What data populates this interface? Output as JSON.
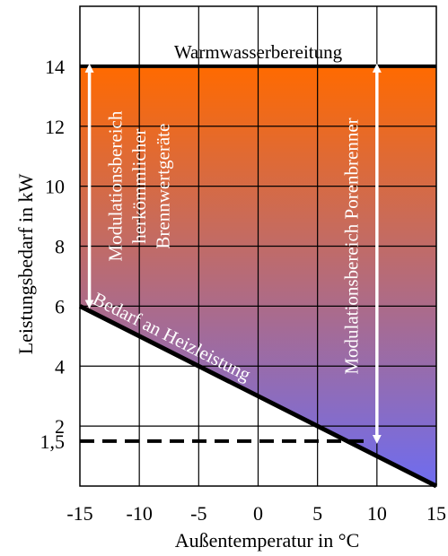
{
  "chart_data": {
    "type": "area",
    "title": "",
    "xlabel": "Außentemperatur in °C",
    "ylabel": "Leistungsbedarf  in kW",
    "xlim": [
      -15,
      15
    ],
    "ylim": [
      0,
      16
    ],
    "x_ticks": [
      -15,
      -10,
      -5,
      0,
      5,
      10,
      15
    ],
    "x_tick_labels": [
      "-15",
      "-10",
      "-5",
      "0",
      "5",
      "10",
      "15"
    ],
    "y_ticks": [
      1.5,
      2,
      4,
      6,
      8,
      10,
      12,
      14
    ],
    "y_tick_labels": [
      "1,5",
      "2",
      "4",
      "6",
      "8",
      "10",
      "12",
      "14"
    ],
    "grid": true,
    "gradient_colors": {
      "top": "#ff6a00",
      "bottom": "#6e6cf0"
    },
    "series": [
      {
        "name": "Bedarf an Heizleistung",
        "x": [
          -15,
          15
        ],
        "y": [
          6,
          0
        ],
        "style": "solid",
        "color": "#000000"
      },
      {
        "name": "Warmwasserbereitung",
        "x": [
          -15,
          15
        ],
        "y": [
          14,
          14
        ],
        "style": "solid",
        "color": "#000000"
      },
      {
        "name": "",
        "x": [
          -15,
          9.5
        ],
        "y": [
          1.5,
          1.5
        ],
        "style": "dashed",
        "color": "#000000"
      }
    ],
    "ranges": [
      {
        "label": "Modulationsbereich herkömmlicher Brennwertgeräte",
        "x": -14.2,
        "y_from": 6,
        "y_to": 14
      },
      {
        "label": "Modulationsbereich Porenbrenner",
        "x": 10,
        "y_from": 1.5,
        "y_to": 14
      }
    ],
    "annotations": {
      "warmwasser": "Warmwasserbereitung",
      "bedarf": "Bedarf an Heizleistung",
      "mod1_line1": "Modulationsbereich",
      "mod1_line2": "herkömmlicher",
      "mod1_line3": "Brennwertgeräte",
      "mod2": "Modulationsbereich Porenbrenner"
    }
  }
}
